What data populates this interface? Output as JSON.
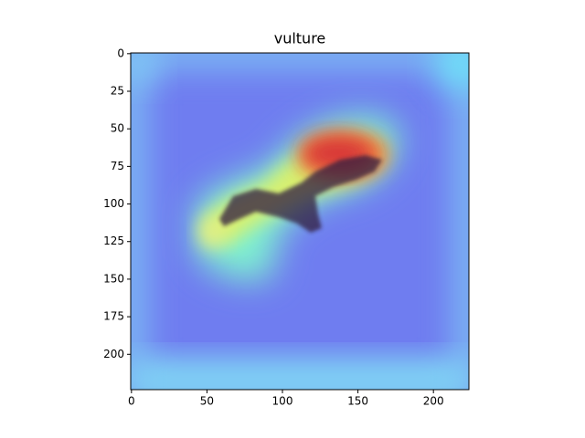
{
  "chart_data": {
    "type": "image",
    "title": "vulture",
    "xlim": [
      -0.5,
      223.5
    ],
    "ylim": [
      223.5,
      -0.5
    ],
    "xticks": [
      0,
      50,
      100,
      150,
      200
    ],
    "yticks": [
      0,
      25,
      50,
      75,
      100,
      125,
      150,
      175,
      200
    ]
  }
}
